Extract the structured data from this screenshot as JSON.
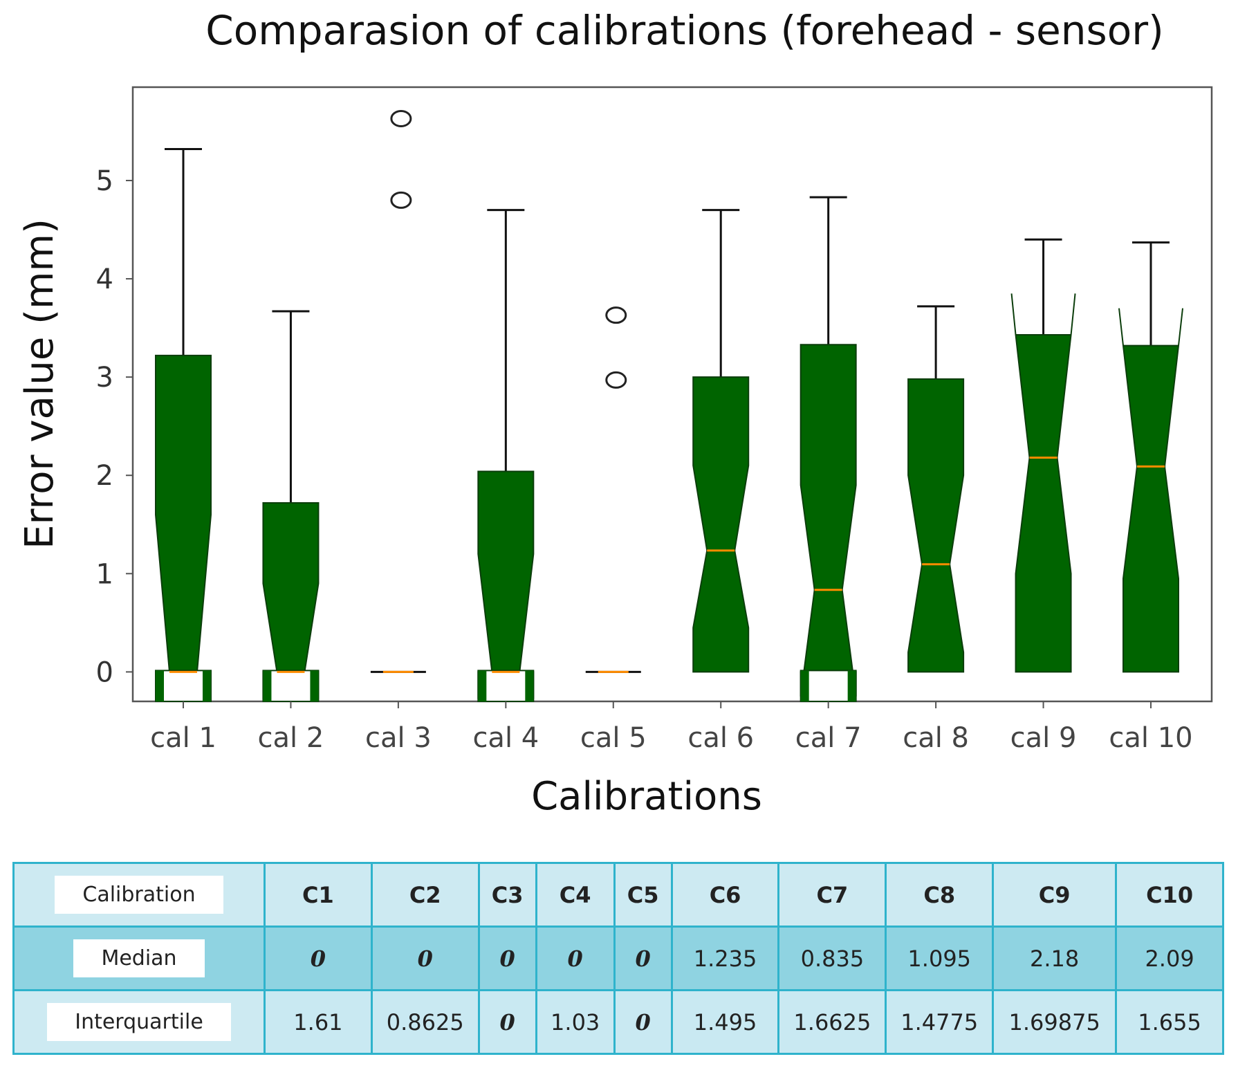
{
  "chart_data": {
    "type": "box",
    "title": "Comparasion of calibrations (forehead - sensor)",
    "xlabel": "Calibrations",
    "ylabel": "Error value (mm)",
    "ylim": [
      -0.3,
      5.95
    ],
    "yticks": [
      0,
      1,
      2,
      3,
      4,
      5
    ],
    "notched": true,
    "box_color": "#006400",
    "median_color": "#ff8c00",
    "categories": [
      "cal 1",
      "cal 2",
      "cal 3",
      "cal 4",
      "cal 5",
      "cal 6",
      "cal 7",
      "cal 8",
      "cal 9",
      "cal 10"
    ],
    "boxes": [
      {
        "label": "cal 1",
        "q1": 0,
        "median": 0,
        "q3": 3.22,
        "whisker_low": 0,
        "whisker_high": 5.32,
        "notch_low": -0.25,
        "notch_high": 1.6,
        "outliers": []
      },
      {
        "label": "cal 2",
        "q1": 0,
        "median": 0,
        "q3": 1.72,
        "whisker_low": 0,
        "whisker_high": 3.67,
        "notch_low": -0.25,
        "notch_high": 0.9,
        "outliers": []
      },
      {
        "label": "cal 3",
        "q1": 0,
        "median": 0,
        "q3": 0,
        "whisker_low": 0,
        "whisker_high": 0,
        "notch_low": 0,
        "notch_high": 0,
        "outliers": [
          5.63,
          4.8
        ]
      },
      {
        "label": "cal 4",
        "q1": 0,
        "median": 0,
        "q3": 2.04,
        "whisker_low": 0,
        "whisker_high": 4.7,
        "notch_low": -0.25,
        "notch_high": 1.2,
        "outliers": []
      },
      {
        "label": "cal 5",
        "q1": 0,
        "median": 0,
        "q3": 0,
        "whisker_low": 0,
        "whisker_high": 0,
        "notch_low": 0,
        "notch_high": 0,
        "outliers": [
          3.63,
          2.97
        ]
      },
      {
        "label": "cal 6",
        "q1": 0,
        "median": 1.235,
        "q3": 3.0,
        "whisker_low": 0,
        "whisker_high": 4.7,
        "notch_low": 0.45,
        "notch_high": 2.1,
        "outliers": []
      },
      {
        "label": "cal 7",
        "q1": 0,
        "median": 0.835,
        "q3": 3.33,
        "whisker_low": 0,
        "whisker_high": 4.83,
        "notch_low": -0.25,
        "notch_high": 1.9,
        "outliers": []
      },
      {
        "label": "cal 8",
        "q1": 0,
        "median": 1.095,
        "q3": 2.98,
        "whisker_low": 0,
        "whisker_high": 3.72,
        "notch_low": 0.2,
        "notch_high": 2.0,
        "outliers": []
      },
      {
        "label": "cal 9",
        "q1": 0,
        "median": 2.18,
        "q3": 3.43,
        "whisker_low": 0,
        "whisker_high": 4.4,
        "notch_low": 1.0,
        "notch_high": 3.85,
        "outliers": []
      },
      {
        "label": "cal 10",
        "q1": 0,
        "median": 2.09,
        "q3": 3.32,
        "whisker_low": 0,
        "whisker_high": 4.37,
        "notch_low": 0.95,
        "notch_high": 3.7,
        "outliers": []
      }
    ]
  },
  "table": {
    "row_labels": [
      "Calibration",
      "Median",
      "Interquartile"
    ],
    "columns": [
      "C1",
      "C2",
      "C3",
      "C4",
      "C5",
      "C6",
      "C7",
      "C8",
      "C9",
      "C10"
    ],
    "median": [
      "0",
      "0",
      "0",
      "0",
      "0",
      "1.235",
      "0.835",
      "1.095",
      "2.18",
      "2.09"
    ],
    "interquartile": [
      "1.61",
      "0.8625",
      "0",
      "1.03",
      "0",
      "1.495",
      "1.6625",
      "1.4775",
      "1.69875",
      "1.655"
    ]
  }
}
